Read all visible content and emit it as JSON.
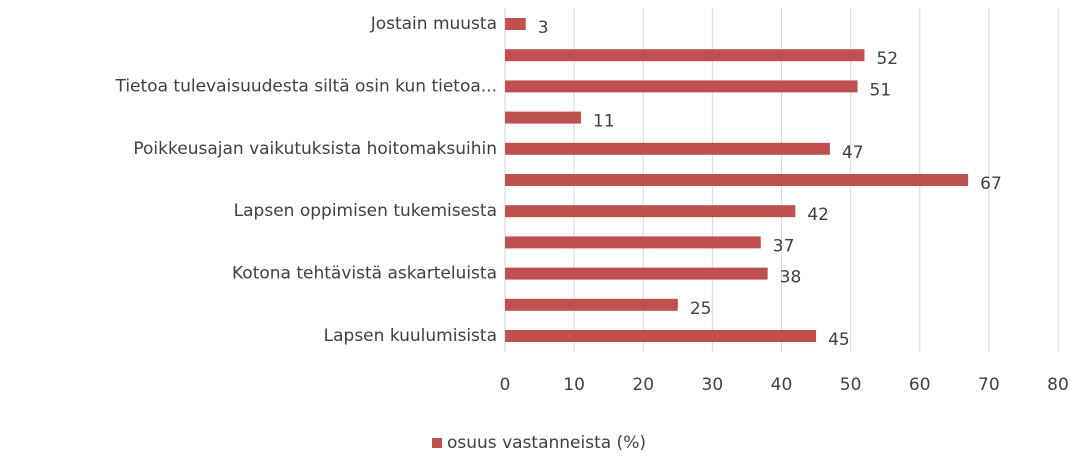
{
  "chart_data": {
    "type": "bar",
    "orientation": "horizontal",
    "categories": [
      "Jostain muusta",
      null,
      "Tietoa tulevaisuudesta siltä osin kun tietoa...",
      null,
      "Poikkeusajan vaikutuksista hoitomaksuihin",
      null,
      "Lapsen oppimisen tukemisesta",
      null,
      "Kotona tehtävistä askarteluista",
      null,
      "Lapsen kuulumisista"
    ],
    "series": [
      {
        "name": "osuus vastanneista (%)",
        "color": "#c0504d",
        "values": [
          3,
          52,
          51,
          11,
          47,
          67,
          42,
          37,
          38,
          25,
          45
        ]
      }
    ],
    "xlim": [
      0,
      80
    ],
    "xticks": [
      0,
      10,
      20,
      30,
      40,
      50,
      60,
      70,
      80
    ],
    "grid": true,
    "legend": "bottom"
  }
}
